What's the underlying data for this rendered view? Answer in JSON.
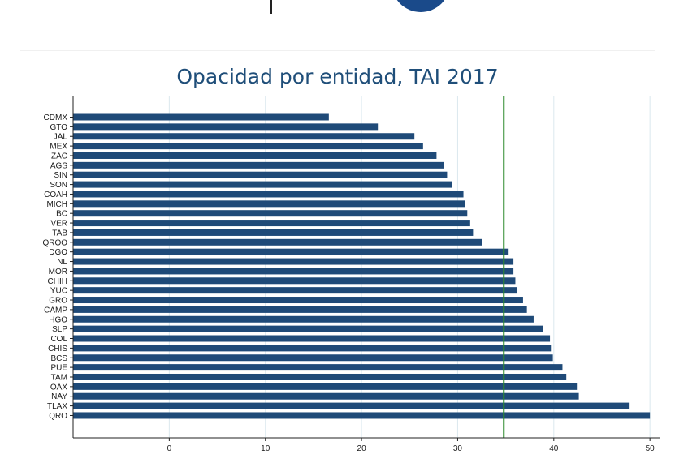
{
  "colors": {
    "bar": "#1f4a78",
    "reference_line": "#2e8b2e",
    "grid": "#dbe8ee",
    "axis": "#222222",
    "title": "#1f4e79",
    "logo": "#1a4a8a"
  },
  "chart_data": {
    "type": "bar",
    "orientation": "horizontal",
    "title": "Opacidad por entidad, TAI 2017",
    "xlabel": "",
    "ylabel": "",
    "categories": [
      "CDMX",
      "GTO",
      "JAL",
      "MEX",
      "ZAC",
      "AGS",
      "SIN",
      "SON",
      "COAH",
      "MICH",
      "BC",
      "VER",
      "TAB",
      "QROO",
      "DGO",
      "NL",
      "MOR",
      "CHIH",
      "YUC",
      "GRO",
      "CAMP",
      "HGO",
      "SLP",
      "COL",
      "CHIS",
      "BCS",
      "PUE",
      "TAM",
      "OAX",
      "NAY",
      "TLAX",
      "QRO"
    ],
    "values": [
      16.6,
      21.7,
      25.5,
      26.4,
      27.8,
      28.6,
      28.9,
      29.4,
      30.6,
      30.8,
      31.0,
      31.3,
      31.6,
      32.5,
      35.3,
      35.8,
      35.8,
      36.0,
      36.2,
      36.8,
      37.2,
      37.9,
      38.9,
      39.6,
      39.7,
      39.9,
      40.9,
      41.3,
      42.4,
      42.6,
      47.8,
      50.0
    ],
    "xlim": [
      -10,
      51
    ],
    "x_ticks": [
      0,
      10,
      20,
      30,
      40,
      50
    ],
    "reference_line": 34.8,
    "grid": "vertical"
  }
}
